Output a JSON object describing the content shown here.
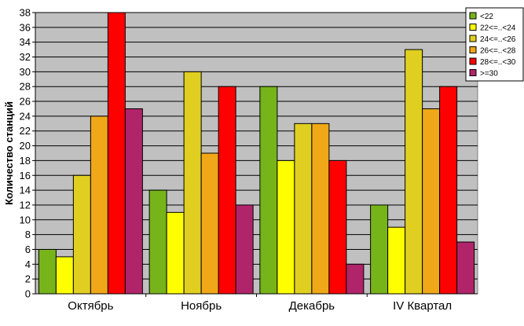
{
  "chart_data": {
    "type": "bar",
    "title": "",
    "xlabel": "",
    "ylabel": "Количество станций",
    "ylim": [
      0,
      38
    ],
    "ytick_step": 2,
    "grid": true,
    "legend_position": "top-right",
    "plot_background": "#c0c0c0",
    "categories": [
      "Октябрь",
      "Ноябрь",
      "Декабрь",
      "IV Квартал"
    ],
    "series": [
      {
        "name": "<22",
        "color": "#76b41a",
        "values": [
          6,
          14,
          28,
          12
        ]
      },
      {
        "name": "22<=..<24",
        "color": "#ffff00",
        "values": [
          5,
          11,
          18,
          9
        ]
      },
      {
        "name": "24<=..<26",
        "color": "#e0cf20",
        "values": [
          16,
          30,
          23,
          33
        ]
      },
      {
        "name": "26<=..<28",
        "color": "#f0a818",
        "values": [
          24,
          19,
          23,
          25
        ]
      },
      {
        "name": "28<=..<30",
        "color": "#ff0000",
        "values": [
          38,
          28,
          18,
          28
        ]
      },
      {
        "name": ">=30",
        "color": "#b0246a",
        "values": [
          25,
          12,
          4,
          7
        ]
      }
    ]
  }
}
